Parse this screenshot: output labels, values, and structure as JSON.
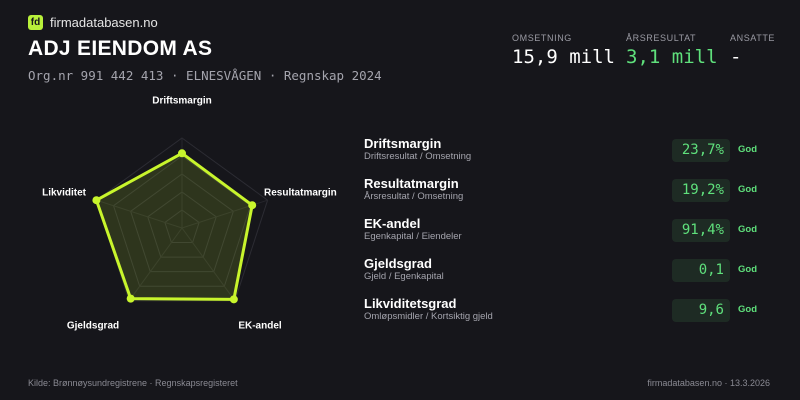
{
  "header": {
    "logo": "fd",
    "site": "firmadatabasen.no",
    "title": "ADJ EIENDOM AS",
    "subtitle": "Org.nr 991 442 413  ·  ELNESVÅGEN  ·  Regnskap 2024"
  },
  "stats": [
    {
      "label": "OMSETNING",
      "value": "15,9 mill"
    },
    {
      "label": "ÅRSRESULTAT",
      "value": "3,1 mill"
    },
    {
      "label": "ANSATTE",
      "value": "-"
    }
  ],
  "chart_data": {
    "type": "radar",
    "categories": [
      "Driftsmargin",
      "Resultatmargin",
      "EK-andel",
      "Gjeldsgrad",
      "Likviditet"
    ],
    "values": [
      83,
      82,
      98,
      97,
      100
    ],
    "color": "#c8f52c",
    "rlim": [
      0,
      100
    ],
    "rticks": [
      20,
      40,
      60,
      80,
      100
    ],
    "grid": true
  },
  "metrics": [
    {
      "name": "Driftsmargin",
      "formula": "Driftsresultat / Omsetning",
      "value": "23,7%",
      "rating": "God"
    },
    {
      "name": "Resultatmargin",
      "formula": "Årsresultat / Omsetning",
      "value": "19,2%",
      "rating": "God"
    },
    {
      "name": "EK-andel",
      "formula": "Egenkapital / Eiendeler",
      "value": "91,4%",
      "rating": "God"
    },
    {
      "name": "Gjeldsgrad",
      "formula": "Gjeld / Egenkapital",
      "value": "0,1",
      "rating": "God"
    },
    {
      "name": "Likviditetsgrad",
      "formula": "Omløpsmidler / Kortsiktig gjeld",
      "value": "9,6",
      "rating": "God"
    }
  ],
  "footer": {
    "source": "Kilde: Brønnøysundregistrene · Regnskapsregisteret",
    "site": "firmadatabasen.no · 13.3.2026"
  }
}
